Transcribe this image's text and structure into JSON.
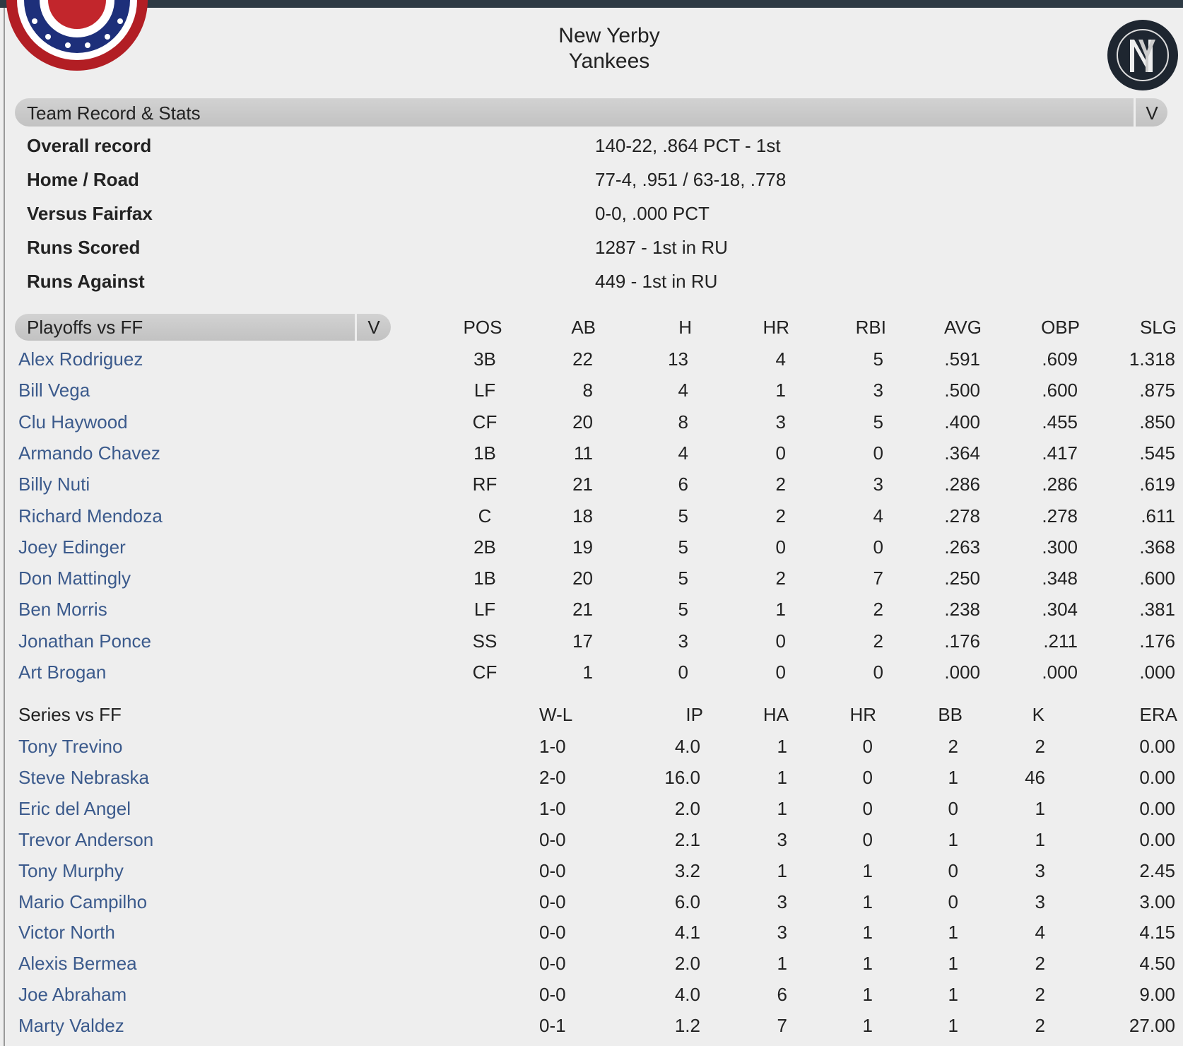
{
  "header": {
    "title_lines": [
      "New Yerby",
      "Yankees"
    ]
  },
  "record": {
    "title": "Team Record & Stats",
    "toggle": "V",
    "rows": [
      [
        "Overall record",
        "140-22, .864 PCT - 1st"
      ],
      [
        "Home / Road",
        "77-4, .951 / 63-18, .778"
      ],
      [
        "Versus Fairfax",
        "0-0, .000 PCT"
      ],
      [
        "Runs Scored",
        "1287 - 1st in RU"
      ],
      [
        "Runs Against",
        "449 - 1st in RU"
      ]
    ]
  },
  "batting": {
    "selector": "Playoffs vs FF",
    "toggle": "V",
    "columns": [
      "POS",
      "AB",
      "H",
      "HR",
      "RBI",
      "AVG",
      "OBP",
      "SLG"
    ],
    "rows": [
      [
        "Alex Rodriguez",
        "3B",
        "22",
        "13",
        "4",
        "5",
        ".591",
        ".609",
        "1.318"
      ],
      [
        "Bill Vega",
        "LF",
        "8",
        "4",
        "1",
        "3",
        ".500",
        ".600",
        ".875"
      ],
      [
        "Clu Haywood",
        "CF",
        "20",
        "8",
        "3",
        "5",
        ".400",
        ".455",
        ".850"
      ],
      [
        "Armando Chavez",
        "1B",
        "11",
        "4",
        "0",
        "0",
        ".364",
        ".417",
        ".545"
      ],
      [
        "Billy Nuti",
        "RF",
        "21",
        "6",
        "2",
        "3",
        ".286",
        ".286",
        ".619"
      ],
      [
        "Richard Mendoza",
        "C",
        "18",
        "5",
        "2",
        "4",
        ".278",
        ".278",
        ".611"
      ],
      [
        "Joey Edinger",
        "2B",
        "19",
        "5",
        "0",
        "0",
        ".263",
        ".300",
        ".368"
      ],
      [
        "Don Mattingly",
        "1B",
        "20",
        "5",
        "2",
        "7",
        ".250",
        ".348",
        ".600"
      ],
      [
        "Ben Morris",
        "LF",
        "21",
        "5",
        "1",
        "2",
        ".238",
        ".304",
        ".381"
      ],
      [
        "Jonathan Ponce",
        "SS",
        "17",
        "3",
        "0",
        "2",
        ".176",
        ".211",
        ".176"
      ],
      [
        "Art Brogan",
        "CF",
        "1",
        "0",
        "0",
        "0",
        ".000",
        ".000",
        ".000"
      ]
    ]
  },
  "pitching": {
    "title": "Series vs FF",
    "columns": [
      "W-L",
      "IP",
      "HA",
      "HR",
      "BB",
      "K",
      "ERA"
    ],
    "rows": [
      [
        "Tony Trevino",
        "1-0",
        "4.0",
        "1",
        "0",
        "2",
        "2",
        "0.00"
      ],
      [
        "Steve Nebraska",
        "2-0",
        "16.0",
        "1",
        "0",
        "1",
        "46",
        "0.00"
      ],
      [
        "Eric del Angel",
        "1-0",
        "2.0",
        "1",
        "0",
        "0",
        "1",
        "0.00"
      ],
      [
        "Trevor Anderson",
        "0-0",
        "2.1",
        "3",
        "0",
        "1",
        "1",
        "0.00"
      ],
      [
        "Tony Murphy",
        "0-0",
        "3.2",
        "1",
        "1",
        "0",
        "3",
        "2.45"
      ],
      [
        "Mario Campilho",
        "0-0",
        "6.0",
        "3",
        "1",
        "0",
        "3",
        "3.00"
      ],
      [
        "Victor North",
        "0-0",
        "4.1",
        "3",
        "1",
        "1",
        "4",
        "4.15"
      ],
      [
        "Alexis Bermea",
        "0-0",
        "2.0",
        "1",
        "1",
        "1",
        "2",
        "4.50"
      ],
      [
        "Joe Abraham",
        "0-0",
        "4.0",
        "6",
        "1",
        "1",
        "2",
        "9.00"
      ],
      [
        "Marty Valdez",
        "0-1",
        "1.2",
        "7",
        "1",
        "1",
        "2",
        "27.00"
      ]
    ]
  }
}
